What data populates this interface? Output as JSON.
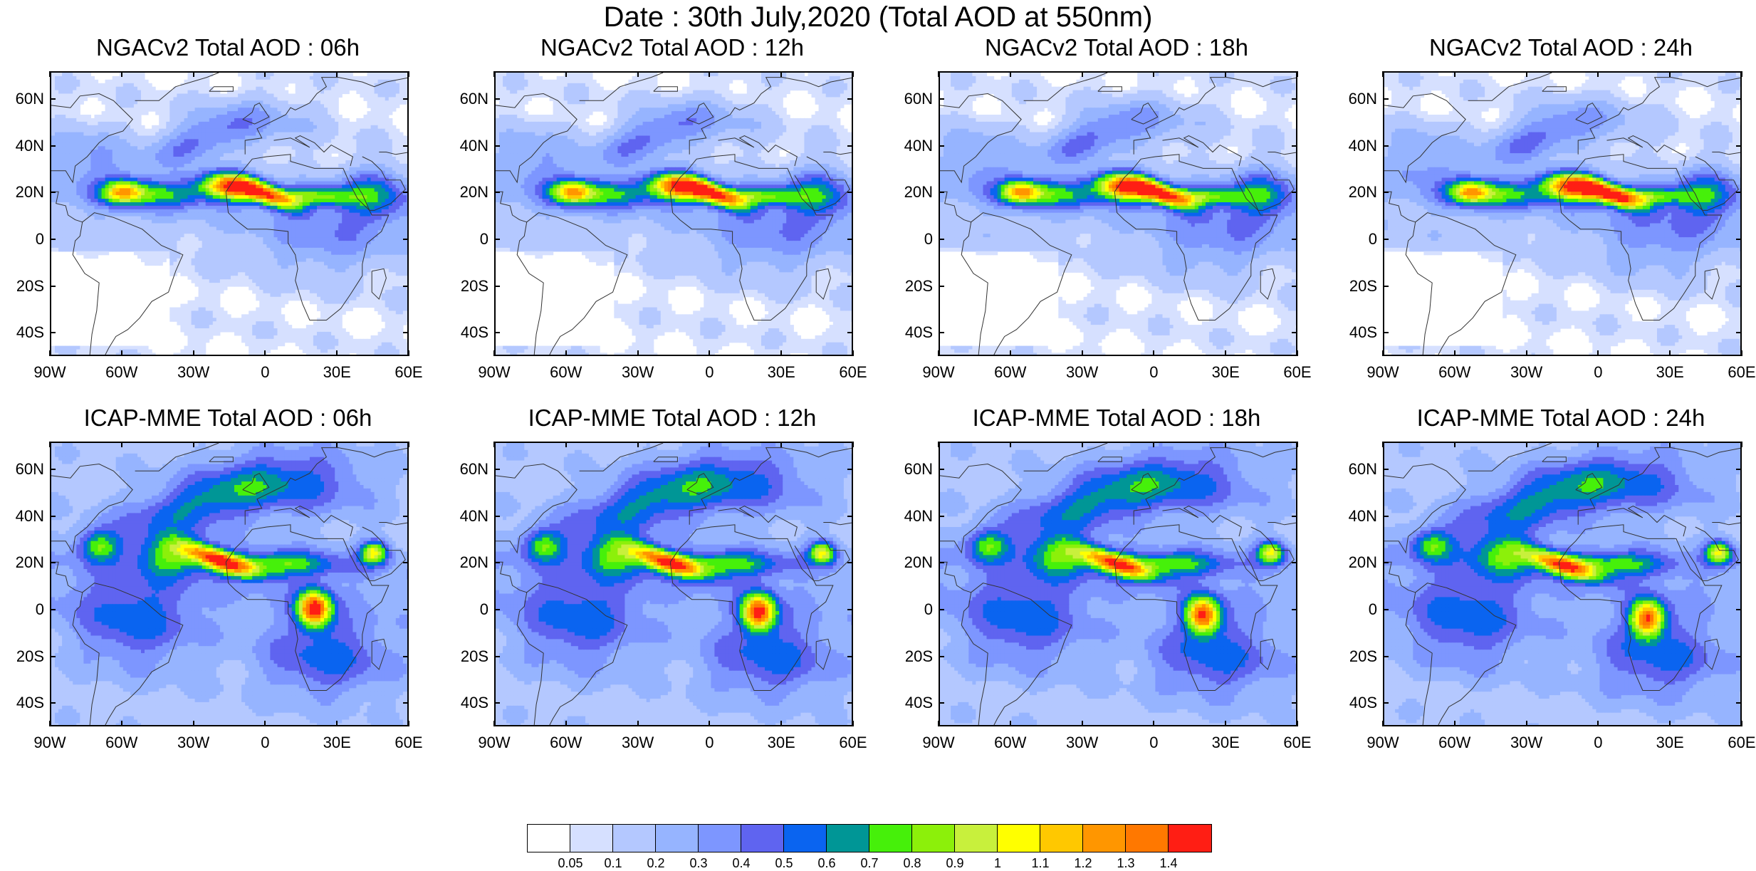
{
  "title": "Date : 30th July,2020 (Total AOD at 550nm)",
  "panels": [
    {
      "title": "NGACv2 Total AOD : 06h",
      "model": "NGACv2",
      "hour": 6
    },
    {
      "title": "NGACv2 Total AOD : 12h",
      "model": "NGACv2",
      "hour": 12
    },
    {
      "title": "NGACv2 Total AOD : 18h",
      "model": "NGACv2",
      "hour": 18
    },
    {
      "title": "NGACv2 Total AOD : 24h",
      "model": "NGACv2",
      "hour": 24
    },
    {
      "title": "ICAP-MME Total AOD : 06h",
      "model": "ICAP-MME",
      "hour": 6
    },
    {
      "title": "ICAP-MME Total AOD : 12h",
      "model": "ICAP-MME",
      "hour": 12
    },
    {
      "title": "ICAP-MME Total AOD : 18h",
      "model": "ICAP-MME",
      "hour": 18
    },
    {
      "title": "ICAP-MME Total AOD : 24h",
      "model": "ICAP-MME",
      "hour": 24
    }
  ],
  "lat_labels": [
    "60N",
    "40N",
    "20N",
    "0",
    "20S",
    "40S"
  ],
  "lat_values": [
    60,
    40,
    20,
    0,
    -20,
    -40
  ],
  "lon_labels": [
    "90W",
    "60W",
    "30W",
    "0",
    "30E",
    "60E"
  ],
  "lon_values": [
    -90,
    -60,
    -30,
    0,
    30,
    60
  ],
  "map_extent": {
    "lon": [
      -90,
      60
    ],
    "lat": [
      -50,
      72
    ]
  },
  "colorbar": {
    "labels": [
      "0.05",
      "0.1",
      "0.2",
      "0.3",
      "0.4",
      "0.5",
      "0.6",
      "0.7",
      "0.8",
      "0.9",
      "1",
      "1.1",
      "1.2",
      "1.3",
      "1.4"
    ],
    "colors": [
      "#ffffff",
      "#d6e0ff",
      "#b4c8ff",
      "#96b4ff",
      "#7d96ff",
      "#5f64f0",
      "#0a64f0",
      "#009696",
      "#46f00a",
      "#8cf00a",
      "#c8f03c",
      "#ffff00",
      "#ffc800",
      "#ff9600",
      "#ff7800",
      "#ff1e14"
    ]
  }
}
